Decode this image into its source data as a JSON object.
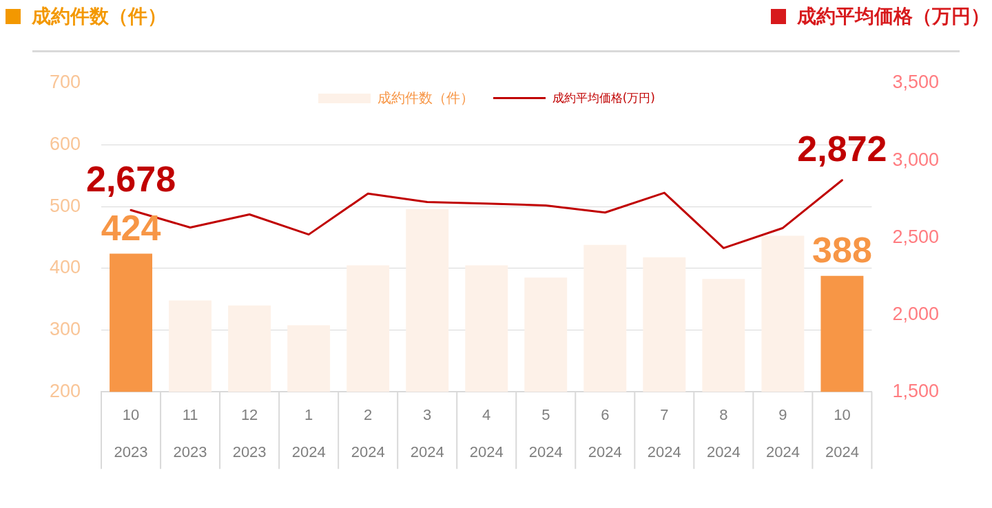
{
  "chart_data": {
    "type": "bar",
    "ylabel": "成約件数（件）",
    "y2label": "成約平均価格（万円）",
    "categories": [
      "10\n2023",
      "11\n2023",
      "12\n2023",
      "1\n2024",
      "2\n2024",
      "3\n2024",
      "4\n2024",
      "5\n2024",
      "6\n2024",
      "7\n2024",
      "8\n2024",
      "9\n2024",
      "10\n2024"
    ],
    "series": [
      {
        "name": "成約件数（件）",
        "color": "#fdf1e8",
        "colors": [
          "#f79646",
          "#fdf1e8",
          "#fdf1e8",
          "#fdf1e8",
          "#fdf1e8",
          "#fdf1e8",
          "#fdf1e8",
          "#fdf1e8",
          "#fdf1e8",
          "#fdf1e8",
          "#fdf1e8",
          "#fdf1e8",
          "#f79646"
        ],
        "values": [
          424,
          348,
          340,
          308,
          405,
          496,
          405,
          385,
          438,
          418,
          383,
          453,
          388
        ],
        "value_labels": [
          "424",
          null,
          null,
          null,
          null,
          null,
          null,
          null,
          null,
          null,
          null,
          null,
          "388"
        ]
      },
      {
        "name": "成約平均価格(万円)",
        "type": "line",
        "axis": "y2",
        "color": "#c00000",
        "values": [
          2678,
          2565,
          2650,
          2520,
          2785,
          2730,
          2720,
          2708,
          2662,
          2790,
          2432,
          2562,
          2872
        ],
        "value_labels": [
          "2,678",
          null,
          null,
          null,
          null,
          null,
          null,
          null,
          null,
          null,
          null,
          null,
          "2,872"
        ]
      }
    ],
    "ylim": [
      200,
      700
    ],
    "yticks": [
      200,
      300,
      400,
      500,
      600,
      700
    ],
    "y2lim": [
      1500,
      3500
    ],
    "y2ticks": [
      {
        "value": 1500,
        "label": "1,500"
      },
      {
        "value": 2000,
        "label": "2,000"
      },
      {
        "value": 2500,
        "label": "2,500"
      },
      {
        "value": 3000,
        "label": "3,000"
      },
      {
        "value": 3500,
        "label": "3,500"
      }
    ],
    "grid": "y",
    "legend": "top",
    "marker": "none"
  }
}
